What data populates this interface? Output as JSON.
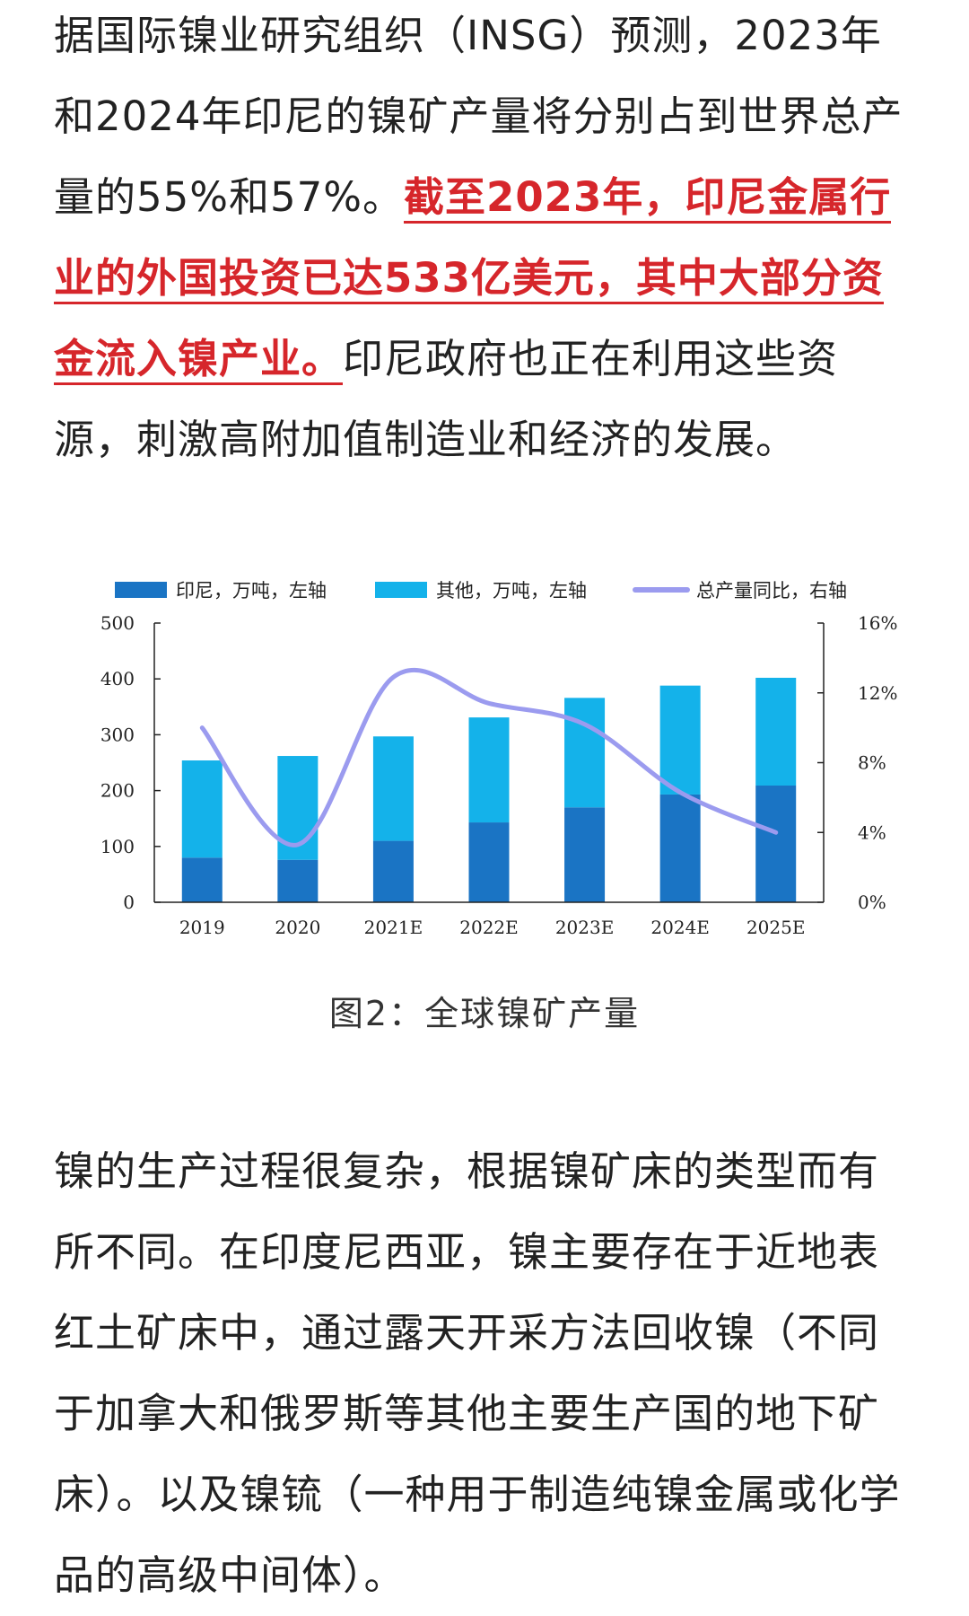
{
  "article": {
    "para1_start": "据国际镍业研究组织（INSG）预测，2023年和2024年印尼的镍矿产量将分别占到世界总产量的55%和57%。",
    "para1_highlight": "截至2023年，印尼金属行业的外国投资已达533亿美元，其中大部分资金流入镍产业。",
    "para1_end": "印尼政府也正在利用这些资源，刺激高附加值制造业和经济的发展。",
    "para2": "镍的生产过程很复杂，根据镍矿床的类型而有所不同。在印度尼西亚，镍主要存在于近地表红土矿床中，通过露天开采方法回收镍（不同于加拿大和俄罗斯等其他主要生产国的地下矿床）。以及镍锍（一种用于制造纯镍金属或化学品的高级中间体）。"
  },
  "figure": {
    "caption": "图2：全球镍矿产量"
  },
  "colors": {
    "indonesia": "#1a74c4",
    "other": "#14b2ea",
    "growth": "#9b9bef",
    "highlight": "#d6262b"
  },
  "chart_data": {
    "type": "bar",
    "stacked": true,
    "categories": [
      "2019",
      "2020",
      "2021E",
      "2022E",
      "2023E",
      "2024E",
      "2025E"
    ],
    "series": [
      {
        "name": "印尼，万吨，左轴",
        "type": "bar",
        "axis": "left",
        "values": [
          80,
          76,
          110,
          143,
          170,
          193,
          209
        ]
      },
      {
        "name": "其他，万吨，左轴",
        "type": "bar",
        "axis": "left",
        "values": [
          174,
          186,
          187,
          188,
          196,
          195,
          193
        ]
      },
      {
        "name": "总产量同比，右轴",
        "type": "line",
        "axis": "right",
        "values": [
          10.0,
          3.3,
          12.9,
          11.4,
          10.2,
          6.3,
          4.0
        ]
      }
    ],
    "y_left": {
      "lim": [
        0,
        500
      ],
      "ticks": [
        "0",
        "100",
        "200",
        "300",
        "400",
        "500"
      ]
    },
    "y_right": {
      "lim": [
        0,
        16
      ],
      "ticks": [
        "0%",
        "4%",
        "8%",
        "12%",
        "16%"
      ]
    },
    "legend": "top",
    "grid": false
  }
}
